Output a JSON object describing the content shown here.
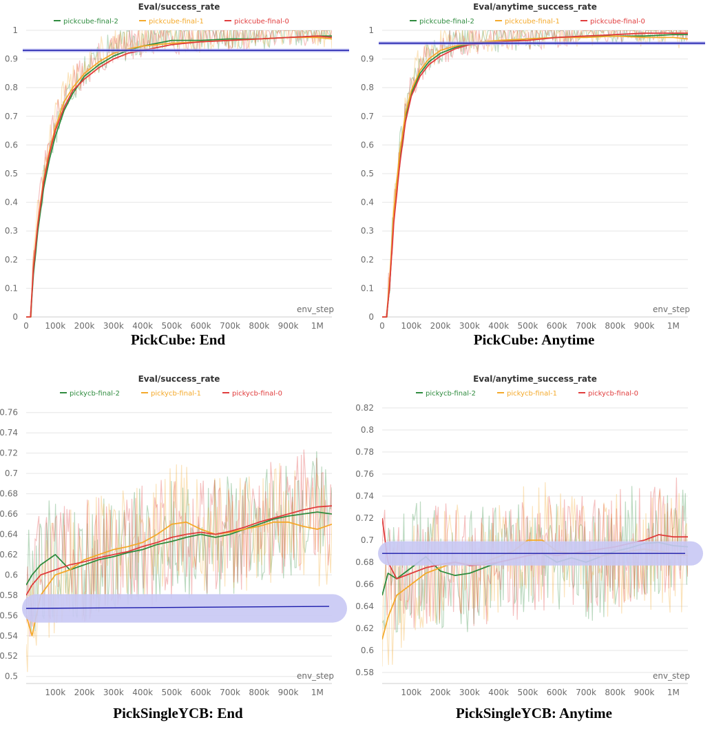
{
  "chart_data": [
    {
      "type": "line",
      "title": "Eval/success_rate",
      "caption": "PickCube: End",
      "xlabel": "env_step",
      "xlim": [
        0,
        1050000
      ],
      "ylim": [
        0,
        1
      ],
      "yticks": [
        0,
        0.1,
        0.2,
        0.3,
        0.4,
        0.5,
        0.6,
        0.7,
        0.8,
        0.9,
        1
      ],
      "ytick_labels": [
        "0",
        "0.1",
        "0.2",
        "0.3",
        "0.4",
        "0.5",
        "0.6",
        "0.7",
        "0.8",
        "0.9",
        "1"
      ],
      "xticks": [
        0,
        100000,
        200000,
        300000,
        400000,
        500000,
        600000,
        700000,
        800000,
        900000,
        1000000
      ],
      "xtick_labels": [
        "0",
        "100k",
        "200k",
        "300k",
        "400k",
        "500k",
        "600k",
        "700k",
        "800k",
        "900k",
        "1M"
      ],
      "grid": true,
      "legend": "top-center",
      "series": [
        {
          "name": "pickcube-final-2",
          "color": "#2e8b3e",
          "x": [
            0,
            15000,
            25000,
            40000,
            60000,
            80000,
            100000,
            130000,
            160000,
            200000,
            250000,
            300000,
            350000,
            400000,
            450000,
            500000,
            600000,
            700000,
            800000,
            900000,
            1000000,
            1050000
          ],
          "y": [
            0,
            0,
            0.15,
            0.3,
            0.45,
            0.55,
            0.63,
            0.72,
            0.78,
            0.84,
            0.88,
            0.91,
            0.93,
            0.945,
            0.955,
            0.965,
            0.965,
            0.97,
            0.97,
            0.975,
            0.98,
            0.98
          ]
        },
        {
          "name": "pickcube-final-1",
          "color": "#f4a92a",
          "x": [
            0,
            15000,
            25000,
            40000,
            60000,
            80000,
            100000,
            130000,
            160000,
            200000,
            250000,
            300000,
            350000,
            400000,
            450000,
            500000,
            600000,
            700000,
            800000,
            900000,
            1000000,
            1050000
          ],
          "y": [
            0,
            0,
            0.18,
            0.33,
            0.48,
            0.58,
            0.66,
            0.75,
            0.8,
            0.85,
            0.89,
            0.92,
            0.935,
            0.945,
            0.95,
            0.955,
            0.96,
            0.965,
            0.97,
            0.975,
            0.975,
            0.97
          ]
        },
        {
          "name": "pickcube-final-0",
          "color": "#e03c3c",
          "x": [
            0,
            15000,
            25000,
            40000,
            60000,
            80000,
            100000,
            130000,
            160000,
            200000,
            250000,
            300000,
            350000,
            400000,
            450000,
            500000,
            600000,
            700000,
            800000,
            900000,
            1000000,
            1050000
          ],
          "y": [
            0,
            0,
            0.17,
            0.32,
            0.47,
            0.57,
            0.65,
            0.73,
            0.79,
            0.83,
            0.87,
            0.9,
            0.92,
            0.93,
            0.94,
            0.95,
            0.96,
            0.965,
            0.97,
            0.975,
            0.98,
            0.975
          ]
        }
      ],
      "reference": {
        "y": 0.93,
        "band": 0.005,
        "color": "#1a1aaa"
      }
    },
    {
      "type": "line",
      "title": "Eval/anytime_success_rate",
      "caption": "PickCube: Anytime",
      "xlabel": "env_step",
      "xlim": [
        0,
        1050000
      ],
      "ylim": [
        0,
        1
      ],
      "yticks": [
        0,
        0.1,
        0.2,
        0.3,
        0.4,
        0.5,
        0.6,
        0.7,
        0.8,
        0.9,
        1
      ],
      "ytick_labels": [
        "0",
        "0.1",
        "0.2",
        "0.3",
        "0.4",
        "0.5",
        "0.6",
        "0.7",
        "0.8",
        "0.9",
        "1"
      ],
      "xticks": [
        0,
        100000,
        200000,
        300000,
        400000,
        500000,
        600000,
        700000,
        800000,
        900000,
        1000000
      ],
      "xtick_labels": [
        "0",
        "100k",
        "200k",
        "300k",
        "400k",
        "500k",
        "600k",
        "700k",
        "800k",
        "900k",
        "1M"
      ],
      "grid": true,
      "legend": "top-center",
      "series": [
        {
          "name": "pickcube-final-2",
          "color": "#2e8b3e",
          "x": [
            0,
            15000,
            25000,
            40000,
            60000,
            80000,
            100000,
            130000,
            160000,
            200000,
            250000,
            300000,
            400000,
            500000,
            600000,
            700000,
            800000,
            900000,
            1000000,
            1050000
          ],
          "y": [
            0,
            0,
            0.1,
            0.35,
            0.55,
            0.7,
            0.78,
            0.85,
            0.89,
            0.92,
            0.94,
            0.955,
            0.96,
            0.97,
            0.975,
            0.98,
            0.98,
            0.98,
            0.985,
            0.985
          ]
        },
        {
          "name": "pickcube-final-1",
          "color": "#f4a92a",
          "x": [
            0,
            15000,
            25000,
            40000,
            60000,
            80000,
            100000,
            130000,
            160000,
            200000,
            250000,
            300000,
            400000,
            500000,
            600000,
            700000,
            800000,
            900000,
            1000000,
            1050000
          ],
          "y": [
            0,
            0,
            0.12,
            0.37,
            0.57,
            0.71,
            0.79,
            0.86,
            0.9,
            0.93,
            0.945,
            0.955,
            0.965,
            0.97,
            0.975,
            0.975,
            0.98,
            0.975,
            0.975,
            0.97
          ]
        },
        {
          "name": "pickcube-final-0",
          "color": "#e03c3c",
          "x": [
            0,
            15000,
            25000,
            40000,
            60000,
            80000,
            100000,
            130000,
            160000,
            200000,
            250000,
            300000,
            400000,
            500000,
            600000,
            700000,
            800000,
            900000,
            1000000,
            1050000
          ],
          "y": [
            0,
            0,
            0.1,
            0.33,
            0.53,
            0.68,
            0.77,
            0.84,
            0.88,
            0.91,
            0.935,
            0.95,
            0.96,
            0.965,
            0.975,
            0.98,
            0.985,
            0.99,
            0.99,
            0.99
          ]
        }
      ],
      "reference": {
        "y": 0.955,
        "band": 0.005,
        "color": "#1a1aaa"
      }
    },
    {
      "type": "line",
      "title": "Eval/success_rate",
      "caption": "PickSingleYCB: End",
      "xlabel": "env_step",
      "xlim": [
        0,
        1050000
      ],
      "ylim": [
        0.493,
        0.77
      ],
      "yticks": [
        0.5,
        0.52,
        0.54,
        0.56,
        0.58,
        0.6,
        0.62,
        0.64,
        0.66,
        0.68,
        0.7,
        0.72,
        0.74,
        0.76
      ],
      "ytick_labels": [
        "0.5",
        "0.52",
        "0.54",
        "0.56",
        "0.58",
        "0.6",
        "0.62",
        "0.64",
        "0.66",
        "0.68",
        "0.7",
        "0.72",
        "0.74",
        "0.76"
      ],
      "xticks": [
        100000,
        200000,
        300000,
        400000,
        500000,
        600000,
        700000,
        800000,
        900000,
        1000000
      ],
      "xtick_labels": [
        "100k",
        "200k",
        "300k",
        "400k",
        "500k",
        "600k",
        "700k",
        "800k",
        "900k",
        "1M"
      ],
      "grid": true,
      "legend": "top-center",
      "series": [
        {
          "name": "pickycb-final-2",
          "color": "#2e8b3e",
          "x": [
            0,
            20000,
            50000,
            100000,
            150000,
            200000,
            250000,
            300000,
            350000,
            400000,
            450000,
            500000,
            550000,
            600000,
            650000,
            700000,
            750000,
            800000,
            850000,
            900000,
            950000,
            1000000,
            1050000
          ],
          "y": [
            0.59,
            0.6,
            0.61,
            0.62,
            0.605,
            0.61,
            0.615,
            0.618,
            0.622,
            0.625,
            0.63,
            0.633,
            0.637,
            0.64,
            0.637,
            0.64,
            0.645,
            0.65,
            0.655,
            0.658,
            0.66,
            0.662,
            0.66
          ]
        },
        {
          "name": "pickycb-final-1",
          "color": "#f4a92a",
          "x": [
            0,
            20000,
            50000,
            100000,
            150000,
            200000,
            250000,
            300000,
            350000,
            400000,
            450000,
            500000,
            550000,
            600000,
            650000,
            700000,
            750000,
            800000,
            850000,
            900000,
            950000,
            1000000,
            1050000
          ],
          "y": [
            0.56,
            0.54,
            0.58,
            0.6,
            0.605,
            0.615,
            0.62,
            0.625,
            0.628,
            0.632,
            0.64,
            0.65,
            0.652,
            0.645,
            0.64,
            0.642,
            0.645,
            0.648,
            0.652,
            0.652,
            0.648,
            0.645,
            0.65
          ]
        },
        {
          "name": "pickycb-final-0",
          "color": "#e03c3c",
          "x": [
            0,
            20000,
            50000,
            100000,
            150000,
            200000,
            250000,
            300000,
            350000,
            400000,
            450000,
            500000,
            550000,
            600000,
            650000,
            700000,
            750000,
            800000,
            850000,
            900000,
            950000,
            1000000,
            1050000
          ],
          "y": [
            0.58,
            0.59,
            0.6,
            0.605,
            0.61,
            0.613,
            0.617,
            0.62,
            0.623,
            0.628,
            0.632,
            0.637,
            0.64,
            0.642,
            0.64,
            0.643,
            0.647,
            0.652,
            0.656,
            0.66,
            0.664,
            0.667,
            0.668
          ]
        }
      ],
      "reference": {
        "y": 0.567,
        "y_end": 0.569,
        "band": 0.014,
        "color": "#1a1aaa"
      }
    },
    {
      "type": "line",
      "title": "Eval/anytime_success_rate",
      "caption": "PickSingleYCB: Anytime",
      "xlabel": "env_step",
      "xlim": [
        0,
        1050000
      ],
      "ylim": [
        0.57,
        0.825
      ],
      "yticks": [
        0.58,
        0.6,
        0.62,
        0.64,
        0.66,
        0.68,
        0.7,
        0.72,
        0.74,
        0.76,
        0.78,
        0.8,
        0.82
      ],
      "ytick_labels": [
        "0.58",
        "0.6",
        "0.62",
        "0.64",
        "0.66",
        "0.68",
        "0.7",
        "0.72",
        "0.74",
        "0.76",
        "0.78",
        "0.8",
        "0.82"
      ],
      "xticks": [
        100000,
        200000,
        300000,
        400000,
        500000,
        600000,
        700000,
        800000,
        900000,
        1000000
      ],
      "xtick_labels": [
        "100k",
        "200k",
        "300k",
        "400k",
        "500k",
        "600k",
        "700k",
        "800k",
        "900k",
        "1M"
      ],
      "grid": true,
      "legend": "top-center",
      "series": [
        {
          "name": "pickycb-final-2",
          "color": "#2e8b3e",
          "x": [
            0,
            20000,
            50000,
            100000,
            150000,
            200000,
            250000,
            300000,
            350000,
            400000,
            450000,
            500000,
            550000,
            600000,
            650000,
            700000,
            750000,
            800000,
            850000,
            900000,
            950000,
            1000000,
            1050000
          ],
          "y": [
            0.65,
            0.67,
            0.665,
            0.675,
            0.685,
            0.672,
            0.668,
            0.67,
            0.675,
            0.68,
            0.683,
            0.686,
            0.688,
            0.68,
            0.684,
            0.68,
            0.685,
            0.69,
            0.693,
            0.697,
            0.698,
            0.695,
            0.694
          ]
        },
        {
          "name": "pickycb-final-1",
          "color": "#f4a92a",
          "x": [
            0,
            20000,
            50000,
            100000,
            150000,
            200000,
            250000,
            300000,
            350000,
            400000,
            450000,
            500000,
            550000,
            600000,
            650000,
            700000,
            750000,
            800000,
            850000,
            900000,
            950000,
            1000000,
            1050000
          ],
          "y": [
            0.61,
            0.63,
            0.65,
            0.66,
            0.67,
            0.675,
            0.68,
            0.678,
            0.68,
            0.685,
            0.69,
            0.7,
            0.7,
            0.69,
            0.688,
            0.687,
            0.685,
            0.688,
            0.69,
            0.692,
            0.69,
            0.688,
            0.686
          ]
        },
        {
          "name": "pickycb-final-0",
          "color": "#e03c3c",
          "x": [
            0,
            20000,
            50000,
            100000,
            150000,
            200000,
            250000,
            300000,
            350000,
            400000,
            450000,
            500000,
            550000,
            600000,
            650000,
            700000,
            750000,
            800000,
            850000,
            900000,
            950000,
            1000000,
            1050000
          ],
          "y": [
            0.72,
            0.68,
            0.665,
            0.67,
            0.675,
            0.678,
            0.68,
            0.677,
            0.678,
            0.68,
            0.683,
            0.686,
            0.688,
            0.686,
            0.688,
            0.69,
            0.692,
            0.694,
            0.697,
            0.7,
            0.705,
            0.703,
            0.703
          ]
        }
      ],
      "reference": {
        "y": 0.688,
        "band": 0.011,
        "color": "#1a1aaa"
      }
    }
  ]
}
